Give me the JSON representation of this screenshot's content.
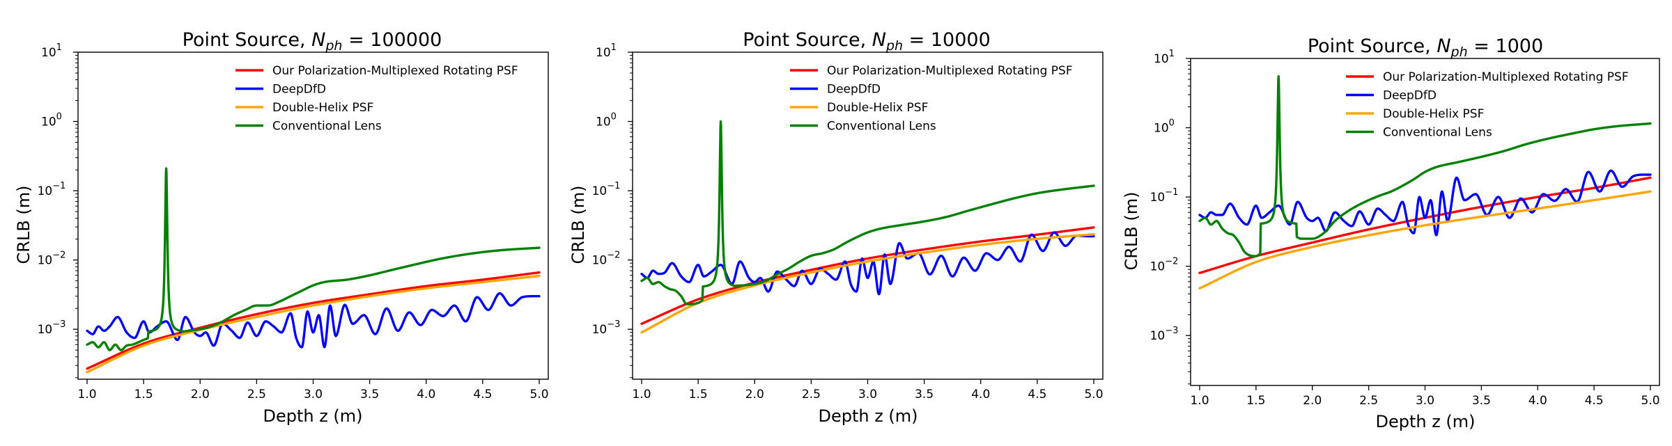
{
  "figure": {
    "panels": [
      {
        "title_main": "Point Source, ",
        "title_n": "N",
        "title_sub": "ph",
        "title_eq": " = 100000",
        "xlabel": "Depth z (m)",
        "ylabel": "CRLB (m)"
      },
      {
        "title_main": "Point Source, ",
        "title_n": "N",
        "title_sub": "ph",
        "title_eq": " = 10000",
        "xlabel": "Depth z (m)",
        "ylabel": "CRLB (m)"
      },
      {
        "title_main": "Point Source, ",
        "title_n": "N",
        "title_sub": "ph",
        "title_eq": " = 1000",
        "xlabel": "Depth z (m)",
        "ylabel": "CRLB (m)"
      }
    ]
  },
  "chart_data": [
    {
      "type": "line",
      "title": "Point Source, N_ph = 100000",
      "xlabel": "Depth z (m)",
      "ylabel": "CRLB (m)",
      "yscale": "log",
      "xlim": [
        1.0,
        5.0
      ],
      "ylim": [
        0.00019,
        10
      ],
      "xticks": [
        1.0,
        1.5,
        2.0,
        2.5,
        3.0,
        3.5,
        4.0,
        4.5,
        5.0
      ],
      "yticks": [
        0.001,
        0.01,
        0.1,
        1,
        10
      ],
      "ytick_labels": [
        {
          "base": "10",
          "exp": "−3"
        },
        {
          "base": "10",
          "exp": "−2"
        },
        {
          "base": "10",
          "exp": "−1"
        },
        {
          "base": "10",
          "exp": "0"
        },
        {
          "base": "10",
          "exp": "1"
        }
      ],
      "legend_position": "top-right",
      "grid": false,
      "peak": {
        "x": 1.7,
        "y": 0.21,
        "floor": 0.0009
      },
      "series": [
        {
          "name": "Our Polarization-Multiplexed Rotating PSF",
          "color": "#ff0000",
          "kind": "smooth",
          "x": [
            1.0,
            1.5,
            2.0,
            2.5,
            3.0,
            3.5,
            4.0,
            4.5,
            5.0
          ],
          "y": [
            0.00027,
            0.00062,
            0.00105,
            0.00165,
            0.0024,
            0.0032,
            0.0042,
            0.0052,
            0.0066
          ]
        },
        {
          "name": "DeepDfD",
          "color": "#0000ff",
          "kind": "smooth",
          "x": [
            1.0,
            1.05,
            1.1,
            1.15,
            1.2,
            1.27,
            1.35,
            1.42,
            1.5,
            1.55,
            1.62,
            1.7,
            1.8,
            1.87,
            1.95,
            2.0,
            2.05,
            2.12,
            2.2,
            2.28,
            2.35,
            2.42,
            2.5,
            2.58,
            2.65,
            2.72,
            2.8,
            2.85,
            2.9,
            2.95,
            3.0,
            3.05,
            3.1,
            3.15,
            3.2,
            3.28,
            3.35,
            3.45,
            3.55,
            3.65,
            3.75,
            3.85,
            3.95,
            4.05,
            4.15,
            4.25,
            4.35,
            4.45,
            4.55,
            4.65,
            4.75,
            4.85,
            4.95,
            5.0
          ],
          "y": [
            0.00095,
            0.00085,
            0.0011,
            0.00095,
            0.0011,
            0.0015,
            0.0009,
            0.00075,
            0.0013,
            0.0009,
            0.0011,
            0.0013,
            0.0007,
            0.0015,
            0.0009,
            0.0008,
            0.0009,
            0.00058,
            0.0012,
            0.00095,
            0.00075,
            0.00125,
            0.0008,
            0.0013,
            0.0011,
            0.0009,
            0.0017,
            0.00075,
            0.00055,
            0.0018,
            0.0009,
            0.0016,
            0.00055,
            0.0022,
            0.0008,
            0.00225,
            0.0012,
            0.0016,
            0.00085,
            0.002,
            0.00095,
            0.00175,
            0.00115,
            0.0019,
            0.00155,
            0.0022,
            0.0013,
            0.0029,
            0.0019,
            0.0033,
            0.0022,
            0.0029,
            0.003,
            0.003
          ]
        },
        {
          "name": "Double-Helix PSF",
          "color": "#ffa500",
          "kind": "smooth",
          "x": [
            1.0,
            1.5,
            2.0,
            2.5,
            3.0,
            3.5,
            4.0,
            4.5,
            5.0
          ],
          "y": [
            0.00024,
            0.00058,
            0.00098,
            0.0015,
            0.0022,
            0.003,
            0.0039,
            0.0048,
            0.0059
          ]
        },
        {
          "name": "Conventional Lens",
          "color": "#008000",
          "kind": "peak",
          "x": [
            1.0,
            1.05,
            1.1,
            1.15,
            1.2,
            1.25,
            1.3,
            1.35,
            1.4,
            1.5,
            1.6,
            1.8,
            1.9,
            2.0,
            2.1,
            2.2,
            2.3,
            2.4,
            2.5,
            2.6,
            2.7,
            2.8,
            2.9,
            3.0,
            3.1,
            3.3,
            3.5,
            3.7,
            3.9,
            4.1,
            4.3,
            4.5,
            4.7,
            5.0
          ],
          "y": [
            0.0006,
            0.00065,
            0.00055,
            0.00065,
            0.0005,
            0.0006,
            0.0005,
            0.00058,
            0.0006,
            0.0007,
            0.0008,
            0.0009,
            0.00095,
            0.001,
            0.0011,
            0.0013,
            0.0016,
            0.0019,
            0.0022,
            0.0022,
            0.0025,
            0.003,
            0.0036,
            0.0043,
            0.0048,
            0.0052,
            0.006,
            0.0072,
            0.0086,
            0.0102,
            0.0117,
            0.013,
            0.014,
            0.015
          ]
        }
      ]
    },
    {
      "type": "line",
      "title": "Point Source, N_ph = 10000",
      "xlabel": "Depth z (m)",
      "ylabel": "CRLB (m)",
      "yscale": "log",
      "xlim": [
        1.0,
        5.0
      ],
      "ylim": [
        0.00019,
        10
      ],
      "xticks": [
        1.0,
        1.5,
        2.0,
        2.5,
        3.0,
        3.5,
        4.0,
        4.5,
        5.0
      ],
      "yticks": [
        0.001,
        0.01,
        0.1,
        1,
        10
      ],
      "ytick_labels": [
        {
          "base": "10",
          "exp": "−3"
        },
        {
          "base": "10",
          "exp": "−2"
        },
        {
          "base": "10",
          "exp": "−1"
        },
        {
          "base": "10",
          "exp": "0"
        },
        {
          "base": "10",
          "exp": "1"
        }
      ],
      "legend_position": "top-right",
      "grid": false,
      "peak": {
        "x": 1.7,
        "y": 1.0,
        "floor": 0.004
      },
      "series": [
        {
          "name": "Our Polarization-Multiplexed Rotating PSF",
          "color": "#ff0000",
          "kind": "smooth",
          "x": [
            1.0,
            1.5,
            2.0,
            2.5,
            3.0,
            3.5,
            4.0,
            4.5,
            5.0
          ],
          "y": [
            0.0012,
            0.0027,
            0.0047,
            0.0072,
            0.0105,
            0.0142,
            0.0185,
            0.0232,
            0.0295
          ]
        },
        {
          "name": "DeepDfD",
          "color": "#0000ff",
          "kind": "smooth",
          "x": [
            1.0,
            1.05,
            1.1,
            1.15,
            1.2,
            1.27,
            1.35,
            1.42,
            1.5,
            1.55,
            1.62,
            1.7,
            1.8,
            1.87,
            1.95,
            2.0,
            2.05,
            2.12,
            2.2,
            2.28,
            2.35,
            2.42,
            2.5,
            2.58,
            2.65,
            2.72,
            2.8,
            2.85,
            2.9,
            2.95,
            3.0,
            3.05,
            3.1,
            3.15,
            3.2,
            3.28,
            3.35,
            3.45,
            3.55,
            3.65,
            3.75,
            3.85,
            3.95,
            4.05,
            4.15,
            4.25,
            4.35,
            4.45,
            4.55,
            4.65,
            4.75,
            4.85,
            4.95,
            5.0
          ],
          "y": [
            0.0063,
            0.0055,
            0.007,
            0.0063,
            0.0065,
            0.009,
            0.0058,
            0.0048,
            0.0085,
            0.0058,
            0.0068,
            0.0085,
            0.0045,
            0.0095,
            0.0055,
            0.0048,
            0.0055,
            0.0035,
            0.0068,
            0.0052,
            0.0042,
            0.007,
            0.0045,
            0.0075,
            0.0063,
            0.0052,
            0.0095,
            0.0045,
            0.0035,
            0.0105,
            0.0055,
            0.0095,
            0.0032,
            0.012,
            0.0045,
            0.0175,
            0.0105,
            0.0125,
            0.0062,
            0.0115,
            0.0058,
            0.0108,
            0.007,
            0.0125,
            0.01,
            0.0155,
            0.0095,
            0.0232,
            0.0135,
            0.025,
            0.016,
            0.0225,
            0.022,
            0.022
          ]
        },
        {
          "name": "Double-Helix PSF",
          "color": "#ffa500",
          "kind": "smooth",
          "x": [
            1.0,
            1.5,
            2.0,
            2.5,
            3.0,
            3.5,
            4.0,
            4.5,
            5.0
          ],
          "y": [
            0.0009,
            0.0024,
            0.0043,
            0.0066,
            0.0095,
            0.0128,
            0.0165,
            0.0202,
            0.0235
          ]
        },
        {
          "name": "Conventional Lens",
          "color": "#008000",
          "kind": "peak",
          "x": [
            1.0,
            1.05,
            1.1,
            1.15,
            1.2,
            1.25,
            1.3,
            1.35,
            1.4,
            1.5,
            1.6,
            1.8,
            1.9,
            2.0,
            2.1,
            2.2,
            2.3,
            2.4,
            2.5,
            2.6,
            2.7,
            2.8,
            2.9,
            3.0,
            3.1,
            3.3,
            3.5,
            3.7,
            3.9,
            4.1,
            4.3,
            4.5,
            4.7,
            5.0
          ],
          "y": [
            0.005,
            0.0055,
            0.0045,
            0.0048,
            0.0042,
            0.0038,
            0.0036,
            0.003,
            0.0023,
            0.0024,
            0.0032,
            0.0042,
            0.0043,
            0.0045,
            0.005,
            0.0062,
            0.0075,
            0.0095,
            0.0115,
            0.0125,
            0.0142,
            0.0175,
            0.0212,
            0.025,
            0.028,
            0.032,
            0.036,
            0.042,
            0.052,
            0.064,
            0.078,
            0.092,
            0.103,
            0.118
          ]
        }
      ]
    },
    {
      "type": "line",
      "title": "Point Source, N_ph = 1000",
      "xlabel": "Depth z (m)",
      "ylabel": "CRLB (m)",
      "yscale": "log",
      "xlim": [
        1.0,
        5.0
      ],
      "ylim": [
        0.00019,
        10
      ],
      "xticks": [
        1.0,
        1.5,
        2.0,
        2.5,
        3.0,
        3.5,
        4.0,
        4.5,
        5.0
      ],
      "yticks": [
        0.001,
        0.01,
        0.1,
        1,
        10
      ],
      "ytick_labels": [
        {
          "base": "10",
          "exp": "−3"
        },
        {
          "base": "10",
          "exp": "−2"
        },
        {
          "base": "10",
          "exp": "−1"
        },
        {
          "base": "10",
          "exp": "0"
        },
        {
          "base": "10",
          "exp": "1"
        }
      ],
      "legend_position": "top-right",
      "grid": false,
      "peak": {
        "x": 1.7,
        "y": 5.5,
        "floor": 0.04
      },
      "series": [
        {
          "name": "Our Polarization-Multiplexed Rotating PSF",
          "color": "#ff0000",
          "kind": "smooth",
          "x": [
            1.0,
            1.5,
            2.0,
            2.5,
            3.0,
            3.5,
            4.0,
            4.5,
            5.0
          ],
          "y": [
            0.008,
            0.014,
            0.022,
            0.034,
            0.05,
            0.072,
            0.1,
            0.135,
            0.19
          ]
        },
        {
          "name": "DeepDfD",
          "color": "#0000ff",
          "kind": "smooth",
          "x": [
            1.0,
            1.05,
            1.1,
            1.15,
            1.2,
            1.27,
            1.35,
            1.42,
            1.5,
            1.55,
            1.62,
            1.7,
            1.8,
            1.87,
            1.95,
            2.0,
            2.05,
            2.12,
            2.2,
            2.28,
            2.35,
            2.42,
            2.5,
            2.58,
            2.65,
            2.72,
            2.8,
            2.85,
            2.9,
            2.95,
            3.0,
            3.05,
            3.1,
            3.15,
            3.2,
            3.28,
            3.35,
            3.45,
            3.55,
            3.65,
            3.75,
            3.85,
            3.95,
            4.05,
            4.15,
            4.25,
            4.35,
            4.45,
            4.55,
            4.65,
            4.75,
            4.85,
            4.95,
            5.0
          ],
          "y": [
            0.055,
            0.05,
            0.06,
            0.055,
            0.055,
            0.08,
            0.05,
            0.04,
            0.075,
            0.05,
            0.06,
            0.075,
            0.04,
            0.085,
            0.05,
            0.045,
            0.05,
            0.032,
            0.06,
            0.045,
            0.038,
            0.062,
            0.04,
            0.068,
            0.055,
            0.045,
            0.085,
            0.04,
            0.03,
            0.1,
            0.05,
            0.09,
            0.028,
            0.12,
            0.045,
            0.19,
            0.09,
            0.11,
            0.055,
            0.1,
            0.05,
            0.095,
            0.06,
            0.11,
            0.088,
            0.13,
            0.085,
            0.23,
            0.12,
            0.24,
            0.14,
            0.2,
            0.21,
            0.21
          ]
        },
        {
          "name": "Double-Helix PSF",
          "color": "#ffa500",
          "kind": "smooth",
          "x": [
            1.0,
            1.5,
            2.0,
            2.5,
            3.0,
            3.5,
            4.0,
            4.5,
            5.0
          ],
          "y": [
            0.0048,
            0.0115,
            0.019,
            0.028,
            0.039,
            0.052,
            0.068,
            0.09,
            0.12
          ]
        },
        {
          "name": "Conventional Lens",
          "color": "#008000",
          "kind": "peak",
          "x": [
            1.0,
            1.05,
            1.1,
            1.15,
            1.2,
            1.25,
            1.3,
            1.35,
            1.4,
            1.5,
            1.6,
            1.8,
            1.9,
            2.0,
            2.1,
            2.2,
            2.3,
            2.4,
            2.5,
            2.6,
            2.7,
            2.8,
            2.9,
            3.0,
            3.1,
            3.3,
            3.5,
            3.7,
            3.9,
            4.1,
            4.3,
            4.5,
            4.7,
            5.0
          ],
          "y": [
            0.045,
            0.05,
            0.04,
            0.045,
            0.035,
            0.03,
            0.028,
            0.022,
            0.016,
            0.014,
            0.02,
            0.03,
            0.025,
            0.025,
            0.03,
            0.045,
            0.06,
            0.075,
            0.09,
            0.105,
            0.12,
            0.145,
            0.18,
            0.23,
            0.27,
            0.32,
            0.38,
            0.46,
            0.58,
            0.7,
            0.82,
            0.95,
            1.05,
            1.15
          ]
        }
      ]
    }
  ]
}
